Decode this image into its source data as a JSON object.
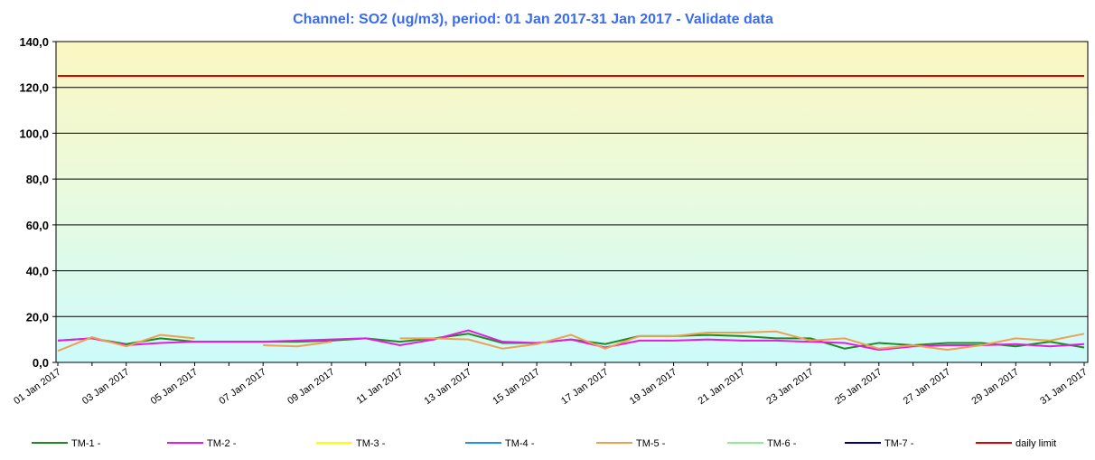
{
  "chart_data": {
    "type": "line",
    "title": "Channel: SO2 (ug/m3), period: 01 Jan 2017-31 Jan 2017 - Validate data",
    "categories": [
      "01 Jan 2017",
      null,
      "03 Jan 2017",
      null,
      "05 Jan 2017",
      null,
      "07 Jan 2017",
      null,
      "09 Jan 2017",
      null,
      "11 Jan 2017",
      null,
      "13 Jan 2017",
      null,
      "15 Jan 2017",
      null,
      "17 Jan 2017",
      null,
      "19 Jan 2017",
      null,
      "21 Jan 2017",
      null,
      "23 Jan 2017",
      null,
      "25 Jan 2017",
      null,
      "27 Jan 2017",
      null,
      "29 Jan 2017",
      null,
      "31 Jan 2017"
    ],
    "ylim": [
      0,
      140
    ],
    "yticks": [
      {
        "value": 0,
        "label": "0,0"
      },
      {
        "value": 20,
        "label": "20,0"
      },
      {
        "value": 40,
        "label": "40,0"
      },
      {
        "value": 60,
        "label": "60,0"
      },
      {
        "value": 80,
        "label": "80,0"
      },
      {
        "value": 100,
        "label": "100,0"
      },
      {
        "value": 120,
        "label": "120,0"
      },
      {
        "value": 140,
        "label": "140,0"
      }
    ],
    "grid": true,
    "legend": "bottom",
    "series": [
      {
        "name": "TM-1 -",
        "color": "#1f8a1f",
        "values": [
          9.5,
          10.5,
          8,
          10.5,
          9,
          9,
          9,
          9,
          9.5,
          10.5,
          9,
          10.5,
          12.5,
          8.5,
          8.5,
          10,
          8,
          11.5,
          11.5,
          12,
          11.5,
          10.5,
          10.5,
          6,
          8.5,
          7.5,
          8.5,
          8.5,
          7,
          9,
          6.5
        ]
      },
      {
        "name": "TM-2 -",
        "color": "#e619e6",
        "values": [
          9.5,
          10.5,
          7.5,
          8.5,
          9,
          9,
          9,
          9.5,
          10,
          10.5,
          7.5,
          10,
          14,
          9,
          8.5,
          10,
          6.5,
          9.5,
          9.5,
          10,
          9.5,
          9.5,
          9,
          8.5,
          5.5,
          7,
          7.5,
          7.5,
          8,
          7,
          8
        ]
      },
      {
        "name": "TM-3 -",
        "color": "#ffff00",
        "values": [
          null,
          null,
          null,
          null,
          null,
          null,
          null,
          null,
          null,
          null,
          null,
          null,
          null,
          null,
          null,
          null,
          null,
          null,
          null,
          null,
          null,
          null,
          null,
          null,
          null,
          null,
          null,
          null,
          null,
          null,
          null
        ]
      },
      {
        "name": "TM-4 -",
        "color": "#1e90ff",
        "values": [
          null,
          null,
          null,
          null,
          null,
          null,
          null,
          null,
          null,
          null,
          null,
          null,
          null,
          null,
          null,
          null,
          null,
          null,
          null,
          null,
          null,
          null,
          null,
          null,
          null,
          null,
          null,
          null,
          null,
          null,
          null
        ]
      },
      {
        "name": "TM-5 -",
        "color": "#f0a050",
        "values": [
          5,
          11,
          7,
          12,
          10.5,
          null,
          7.5,
          7,
          9,
          null,
          10.5,
          10.5,
          10,
          6,
          8,
          12,
          6,
          11.5,
          11.5,
          13,
          13,
          13.5,
          9.5,
          10.5,
          6,
          7.5,
          5.5,
          7.5,
          10.5,
          9.5,
          12.5
        ]
      },
      {
        "name": "TM-6 -",
        "color": "#90ee90",
        "values": [
          null,
          null,
          null,
          null,
          null,
          null,
          null,
          null,
          null,
          null,
          null,
          null,
          null,
          null,
          null,
          null,
          null,
          null,
          null,
          null,
          null,
          null,
          null,
          null,
          null,
          null,
          null,
          null,
          null,
          null,
          null
        ]
      },
      {
        "name": "TM-7 -",
        "color": "#000080",
        "values": [
          null,
          null,
          null,
          null,
          null,
          null,
          null,
          null,
          null,
          null,
          null,
          null,
          null,
          null,
          null,
          null,
          null,
          null,
          null,
          null,
          null,
          null,
          null,
          null,
          null,
          null,
          null,
          null,
          null,
          null,
          null
        ]
      },
      {
        "name": "daily limit",
        "color": "#e00000",
        "values": [
          125,
          125,
          125,
          125,
          125,
          125,
          125,
          125,
          125,
          125,
          125,
          125,
          125,
          125,
          125,
          125,
          125,
          125,
          125,
          125,
          125,
          125,
          125,
          125,
          125,
          125,
          125,
          125,
          125,
          125,
          125
        ]
      }
    ]
  }
}
